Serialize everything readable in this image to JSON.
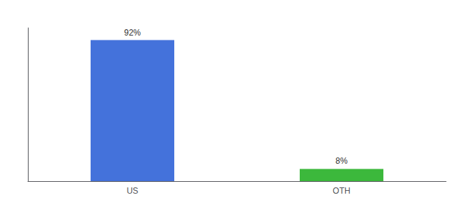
{
  "chart_data": {
    "type": "bar",
    "categories": [
      "US",
      "OTH"
    ],
    "values": [
      92,
      8
    ],
    "value_labels": [
      "92%",
      "8%"
    ],
    "colors": [
      "#4472db",
      "#3cb83c"
    ],
    "ylim": [
      0,
      100
    ],
    "data_labels": true,
    "tick_labels": "x",
    "grid": false
  }
}
